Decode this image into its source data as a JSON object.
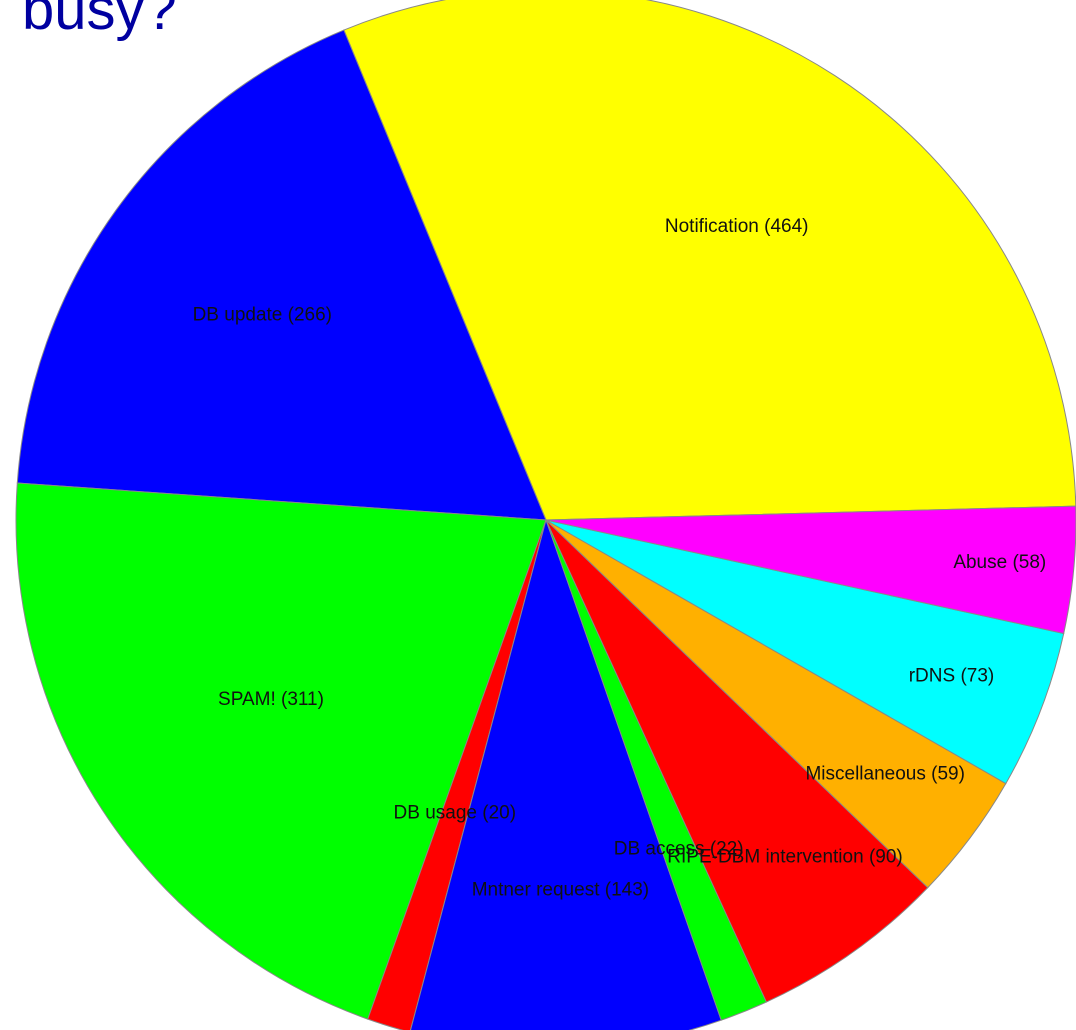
{
  "slide": {
    "title": "busy?"
  },
  "chart_data": {
    "type": "pie",
    "title": "",
    "direction": "counter-clockwise",
    "start": "right",
    "slices": [
      {
        "label": "Notification",
        "value": 464,
        "display": "Notification (464)",
        "color": "#ffff00"
      },
      {
        "label": "DB update",
        "value": 266,
        "display": "DB update (266)",
        "color": "#0000ff"
      },
      {
        "label": "SPAM!",
        "value": 311,
        "display": "SPAM! (311)",
        "color": "#00ff00"
      },
      {
        "label": "DB usage",
        "value": 20,
        "display": "DB usage (20)",
        "color": "#ff0000"
      },
      {
        "label": "Mntner request",
        "value": 143,
        "display": "Mntner request (143)",
        "color": "#0000ff"
      },
      {
        "label": "DB access",
        "value": 22,
        "display": "DB access (22)",
        "color": "#00ff00"
      },
      {
        "label": "RIPE-DBM intervention",
        "value": 90,
        "display": "RIPE-DBM intervention (90)",
        "color": "#ff0000"
      },
      {
        "label": "Miscellaneous",
        "value": 59,
        "display": "Miscellaneous (59)",
        "color": "#ffb000"
      },
      {
        "label": "rDNS",
        "value": 73,
        "display": "rDNS (73)",
        "color": "#00ffff"
      },
      {
        "label": "Abuse",
        "value": 58,
        "display": "Abuse (58)",
        "color": "#ff00ff"
      }
    ]
  }
}
